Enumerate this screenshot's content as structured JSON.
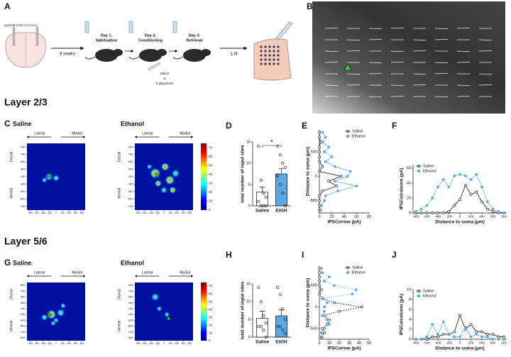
{
  "figure": {
    "panel_a": {
      "label": "A",
      "virus": "rgAAV8-CAG-",
      "virus_red": "tdTomato",
      "wait": "3 weeks",
      "days": [
        {
          "day": "Day 1:",
          "task": "Habituation"
        },
        {
          "day": "Day 2:",
          "task": "Conditioning"
        },
        {
          "day": "Day 3:",
          "task": "Retrieval"
        }
      ],
      "injection": [
        "Saline",
        "or",
        "2 g/kg EtOH"
      ],
      "delay": "1 hr"
    },
    "panel_b": {
      "label": "B"
    },
    "heat_axes": {
      "lateral": "Lateral",
      "medial": "Medial",
      "dorsal": "Dorsal",
      "ventral": "Ventral"
    },
    "sections": [
      {
        "title": "Layer 2/3",
        "label": "C",
        "heatmaps": [
          {
            "title": "Saline"
          },
          {
            "title": "Ethanol"
          }
        ],
        "xlim": [
          -900,
          900
        ],
        "xticks": [
          -800,
          -600,
          -400,
          -200,
          0,
          200,
          400,
          600,
          800
        ],
        "ylim": [
          -800,
          1000
        ],
        "yticks": [
          900,
          700,
          500,
          300,
          100,
          -100,
          -300,
          -500,
          -700
        ],
        "colorbar": {
          "lim": [
            0,
            75
          ],
          "ticks": [
            0,
            10,
            20,
            30,
            40,
            50,
            60,
            70
          ]
        }
      },
      {
        "title": "Layer 5/6",
        "label": "G",
        "heatmaps": [
          {
            "title": "Saline"
          },
          {
            "title": "Ethanol"
          }
        ],
        "xlim": [
          -900,
          900
        ],
        "xticks": [
          -800,
          -600,
          -400,
          -200,
          0,
          200,
          400,
          600,
          800
        ],
        "ylim": [
          -1000,
          1000
        ],
        "yticks": [
          900,
          700,
          500,
          300,
          100,
          -100,
          -300,
          -500,
          -700,
          -900
        ],
        "colorbar": {
          "lim": [
            0,
            75
          ],
          "ticks": [
            0,
            10,
            20,
            30,
            40,
            50,
            60,
            70
          ]
        }
      }
    ]
  },
  "chart_data": [
    {
      "type": "bar",
      "label": "D",
      "y_label": "total number of input sites",
      "categories": [
        "Saline",
        "EtOH"
      ],
      "values": [
        3.2,
        7.5
      ],
      "errors": [
        1.2,
        1.3
      ],
      "colors": [
        "#ffffff",
        "#5aa9e6"
      ],
      "points": [
        [
          14,
          6,
          3,
          2,
          1,
          0,
          0,
          0
        ],
        [
          14,
          12,
          10,
          9,
          7,
          5,
          3,
          0
        ]
      ],
      "ylim": [
        0,
        15
      ],
      "yticks": [
        0,
        5,
        10,
        15
      ],
      "annotation": "*"
    },
    {
      "type": "line",
      "label": "E",
      "orientation": "vertical",
      "x_label": "IPSCs/row (pA)",
      "y_label": "Distance to soma (µm)",
      "y": [
        -700,
        -600,
        -500,
        -400,
        -300,
        -200,
        -100,
        0,
        100,
        200,
        300,
        400,
        500,
        600,
        700,
        800,
        900
      ],
      "series": [
        {
          "name": "Saline",
          "color": "#000000",
          "filled": false,
          "values": [
            0,
            0,
            0,
            0,
            5,
            28,
            15,
            35,
            0,
            5,
            0,
            0,
            0,
            0,
            2,
            0,
            0
          ]
        },
        {
          "name": "Ethanol",
          "color": "#5aa9e6",
          "filled": true,
          "values": [
            2,
            3,
            8,
            10,
            30,
            60,
            25,
            45,
            50,
            25,
            10,
            20,
            8,
            15,
            5,
            10,
            5
          ]
        }
      ],
      "xlim": [
        0,
        80
      ],
      "xticks": [
        0,
        20,
        40,
        60,
        80
      ],
      "ylim": [
        -750,
        950
      ],
      "yticks": [
        -500,
        0,
        500
      ],
      "legend": "upper right"
    },
    {
      "type": "line",
      "label": "F",
      "x_label": "Distance to soma (µm)",
      "y_label": "IPSCs/column (pA)",
      "x": [
        -800,
        -700,
        -600,
        -500,
        -400,
        -300,
        -200,
        -100,
        0,
        100,
        200,
        300,
        400,
        500,
        600,
        700,
        800
      ],
      "series": [
        {
          "name": "Saline",
          "color": "#000000",
          "filled": false,
          "values": [
            0,
            0,
            0,
            0,
            0,
            0,
            2,
            10,
            18,
            37,
            25,
            28,
            15,
            5,
            2,
            0,
            0
          ]
        },
        {
          "name": "Ethanol",
          "color": "#5aa9e6",
          "filled": true,
          "values": [
            2,
            5,
            10,
            20,
            35,
            45,
            35,
            50,
            52,
            50,
            45,
            52,
            35,
            15,
            5,
            2,
            0
          ]
        }
      ],
      "xlim": [
        -850,
        850
      ],
      "xticks": [
        -800,
        -600,
        -400,
        -200,
        0,
        200,
        400,
        600,
        800
      ],
      "ylim": [
        0,
        65
      ],
      "yticks": [
        0,
        20,
        40,
        60
      ],
      "legend": "upper left"
    },
    {
      "type": "bar",
      "label": "H",
      "y_label": "total number of input sites",
      "categories": [
        "Saline",
        "EtOH"
      ],
      "values": [
        5.3,
        6
      ],
      "errors": [
        2,
        1.7
      ],
      "colors": [
        "#ffffff",
        "#5aa9e6"
      ],
      "points": [
        [
          14,
          10,
          6,
          4,
          3,
          3,
          2,
          0
        ],
        [
          14,
          12,
          8,
          5,
          3,
          3,
          2,
          1
        ]
      ],
      "ylim": [
        0,
        15
      ],
      "yticks": [
        0,
        5,
        10,
        15
      ]
    },
    {
      "type": "line",
      "label": "I",
      "orientation": "vertical",
      "dashed": true,
      "x_label": "IPSCs/row (pA)",
      "y_label": "Distance to soma (µm)",
      "y": [
        -700,
        -600,
        -500,
        -400,
        -300,
        -200,
        -100,
        0,
        100,
        200,
        300,
        400,
        500,
        600,
        700,
        800,
        900
      ],
      "series": [
        {
          "name": "Saline",
          "color": "#000000",
          "filled": false,
          "values": [
            2,
            5,
            3,
            8,
            10,
            5,
            20,
            43,
            15,
            3,
            0,
            2,
            0,
            0,
            0,
            0,
            0
          ]
        },
        {
          "name": "Ethanol",
          "color": "#5aa9e6",
          "filled": true,
          "values": [
            3,
            2,
            5,
            10,
            8,
            3,
            5,
            5,
            8,
            3,
            33,
            37,
            15,
            5,
            10,
            3,
            2
          ]
        }
      ],
      "xlim": [
        0,
        50
      ],
      "xticks": [
        0,
        10,
        20,
        30,
        40,
        50
      ],
      "ylim": [
        -750,
        950
      ],
      "yticks": [
        -500,
        0,
        500
      ],
      "legend": "upper right"
    },
    {
      "type": "line",
      "label": "J",
      "x_label": "Distance to soma (µm)",
      "y_label": "IPSCs/column (pA)",
      "x": [
        -800,
        -700,
        -600,
        -500,
        -400,
        -300,
        -200,
        -100,
        0,
        100,
        200,
        300,
        400,
        500,
        600,
        700,
        800
      ],
      "series": [
        {
          "name": "Saline",
          "color": "#000000",
          "filled": false,
          "values": [
            0,
            0,
            0,
            0.5,
            0.5,
            1,
            1,
            1.5,
            4.8,
            2,
            3,
            1.5,
            1.5,
            1,
            1,
            0.5,
            0.5
          ]
        },
        {
          "name": "Ethanol",
          "color": "#5aa9e6",
          "filled": true,
          "values": [
            0,
            0,
            0.5,
            3,
            1,
            3.5,
            1,
            0.5,
            0.5,
            2.5,
            0.5,
            1,
            0.5,
            0.5,
            0,
            0,
            0
          ]
        }
      ],
      "xlim": [
        -850,
        850
      ],
      "xticks": [
        -800,
        -600,
        -400,
        -200,
        0,
        200,
        400,
        600,
        800
      ],
      "ylim": [
        0,
        10
      ],
      "yticks": [
        0,
        2,
        4,
        6,
        8,
        10
      ],
      "legend": "upper left"
    }
  ]
}
